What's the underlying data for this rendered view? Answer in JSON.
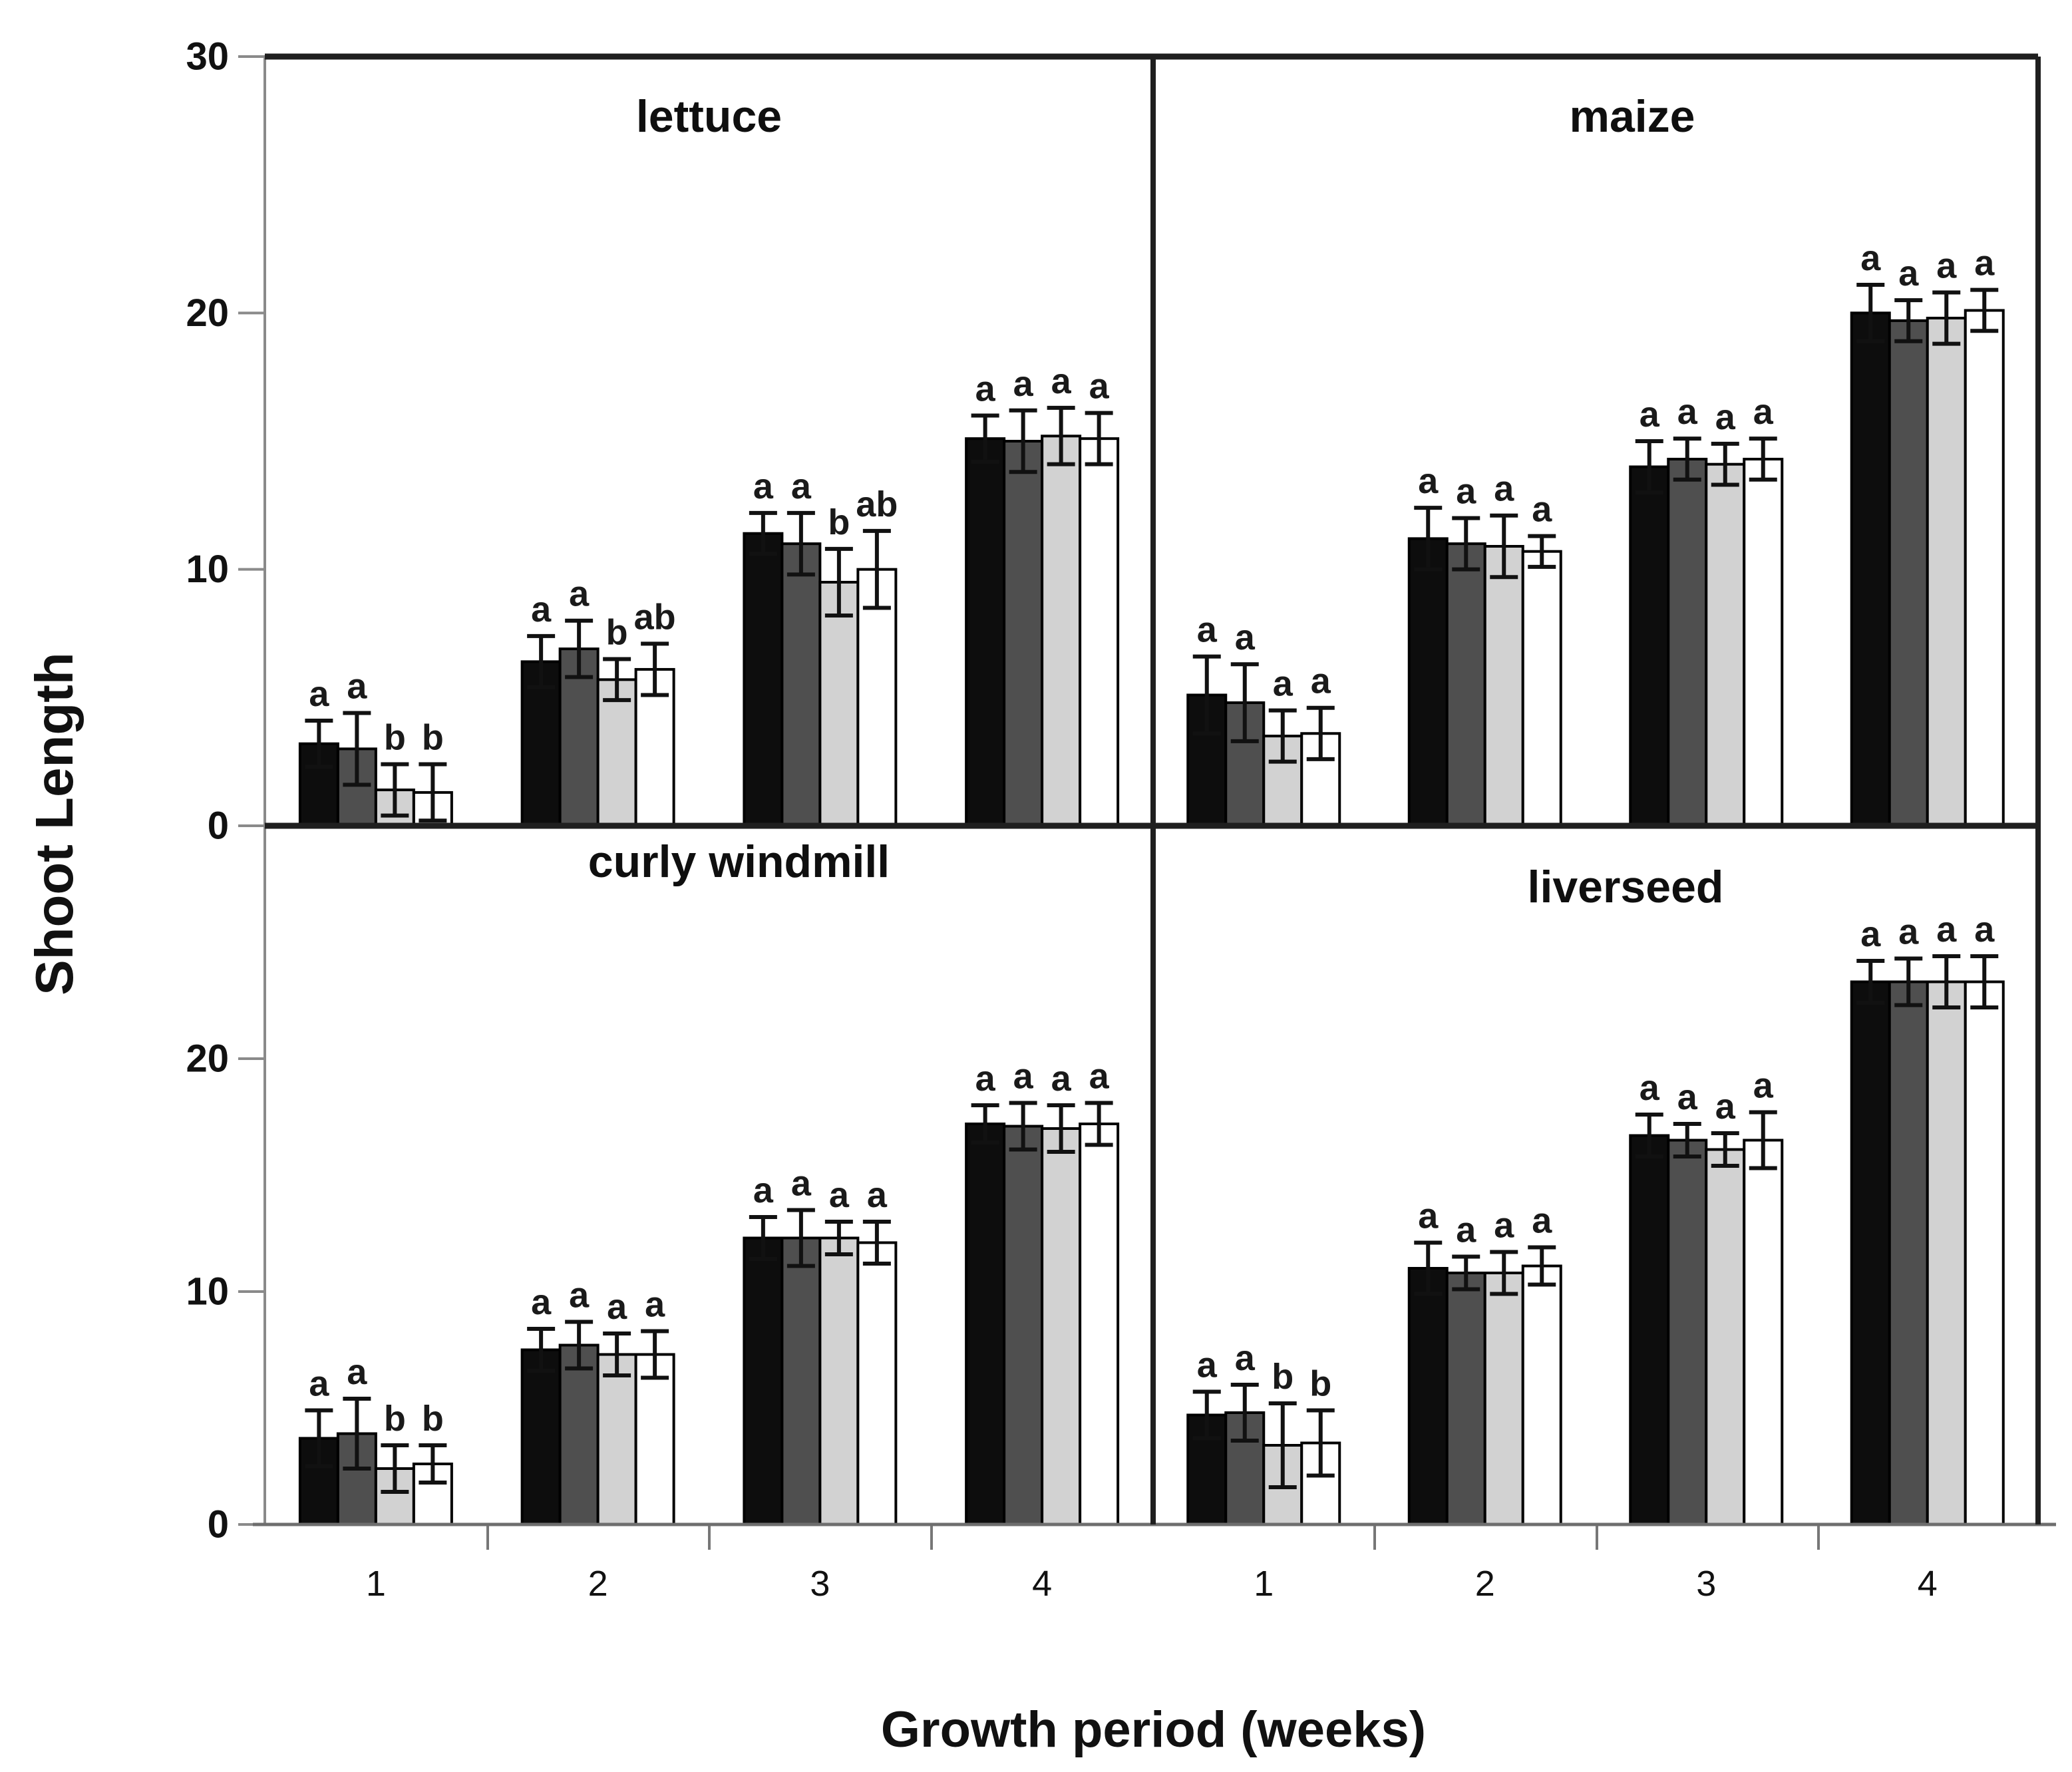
{
  "figure": {
    "background": "#ffffff"
  },
  "chart_data": {
    "type": "bar",
    "title": "",
    "xlabel": "Growth period (weeks)",
    "ylabel": "Shoot Length",
    "categories": [
      "1",
      "2",
      "3",
      "4"
    ],
    "ylim": [
      0,
      30
    ],
    "grid": false,
    "legend": "none",
    "ytick_values_top_panels": [
      30,
      20,
      10,
      0
    ],
    "ytick_values_bottom_panels": [
      20,
      10,
      0
    ],
    "series": [
      {
        "name": "black",
        "fill": "#0d0d0d"
      },
      {
        "name": "dark-gray",
        "fill": "#4f4f4f"
      },
      {
        "name": "light-gray",
        "fill": "#d2d2d2"
      },
      {
        "name": "white",
        "fill": "#ffffff"
      }
    ],
    "colors": {
      "bar_outline": "#000000",
      "error_bar": "#111111",
      "frame": "#1f1f1f",
      "axis": "#8a8a8a",
      "text": "#1a1a1a"
    },
    "panels": [
      {
        "title": "lettuce",
        "row": 0,
        "col": 0,
        "groups": [
          {
            "category": "1",
            "values": [
              3.2,
              3.0,
              1.4,
              1.3
            ],
            "errors": [
              0.9,
              1.4,
              1.0,
              1.1
            ],
            "letters": [
              "a",
              "a",
              "b",
              "b"
            ]
          },
          {
            "category": "2",
            "values": [
              6.4,
              6.9,
              5.7,
              6.1
            ],
            "errors": [
              1.0,
              1.1,
              0.8,
              1.0
            ],
            "letters": [
              "a",
              "a",
              "b",
              "ab"
            ]
          },
          {
            "category": "3",
            "values": [
              11.4,
              11.0,
              9.5,
              10.0
            ],
            "errors": [
              0.8,
              1.2,
              1.3,
              1.5
            ],
            "letters": [
              "a",
              "a",
              "b",
              "ab"
            ]
          },
          {
            "category": "4",
            "values": [
              15.1,
              15.0,
              15.2,
              15.1
            ],
            "errors": [
              0.9,
              1.2,
              1.1,
              1.0
            ],
            "letters": [
              "a",
              "a",
              "a",
              "a"
            ]
          }
        ]
      },
      {
        "title": "maize",
        "row": 0,
        "col": 1,
        "groups": [
          {
            "category": "1",
            "values": [
              5.1,
              4.8,
              3.5,
              3.6
            ],
            "errors": [
              1.5,
              1.5,
              1.0,
              1.0
            ],
            "letters": [
              "a",
              "a",
              "a",
              "a"
            ]
          },
          {
            "category": "2",
            "values": [
              11.2,
              11.0,
              10.9,
              10.7
            ],
            "errors": [
              1.2,
              1.0,
              1.2,
              0.6
            ],
            "letters": [
              "a",
              "a",
              "a",
              "a"
            ]
          },
          {
            "category": "3",
            "values": [
              14.0,
              14.3,
              14.1,
              14.3
            ],
            "errors": [
              1.0,
              0.8,
              0.8,
              0.8
            ],
            "letters": [
              "a",
              "a",
              "a",
              "a"
            ]
          },
          {
            "category": "4",
            "values": [
              20.0,
              19.7,
              19.8,
              20.1
            ],
            "errors": [
              1.1,
              0.8,
              1.0,
              0.8
            ],
            "letters": [
              "a",
              "a",
              "a",
              "a"
            ]
          }
        ]
      },
      {
        "title": "curly windmill",
        "row": 1,
        "col": 0,
        "groups": [
          {
            "category": "1",
            "values": [
              3.7,
              3.9,
              2.4,
              2.6
            ],
            "errors": [
              1.2,
              1.5,
              1.0,
              0.8
            ],
            "letters": [
              "a",
              "a",
              "b",
              "b"
            ]
          },
          {
            "category": "2",
            "values": [
              7.5,
              7.7,
              7.3,
              7.3
            ],
            "errors": [
              0.9,
              1.0,
              0.9,
              1.0
            ],
            "letters": [
              "a",
              "a",
              "a",
              "a"
            ]
          },
          {
            "category": "3",
            "values": [
              12.3,
              12.3,
              12.3,
              12.1
            ],
            "errors": [
              0.9,
              1.2,
              0.7,
              0.9
            ],
            "letters": [
              "a",
              "a",
              "a",
              "a"
            ]
          },
          {
            "category": "4",
            "values": [
              17.2,
              17.1,
              17.0,
              17.2
            ],
            "errors": [
              0.8,
              1.0,
              1.0,
              0.9
            ],
            "letters": [
              "a",
              "a",
              "a",
              "a"
            ]
          }
        ]
      },
      {
        "title": "liverseed",
        "row": 1,
        "col": 1,
        "groups": [
          {
            "category": "1",
            "values": [
              4.7,
              4.8,
              3.4,
              3.5
            ],
            "errors": [
              1.0,
              1.2,
              1.8,
              1.4
            ],
            "letters": [
              "a",
              "a",
              "b",
              "b"
            ]
          },
          {
            "category": "2",
            "values": [
              11.0,
              10.8,
              10.8,
              11.1
            ],
            "errors": [
              1.1,
              0.7,
              0.9,
              0.8
            ],
            "letters": [
              "a",
              "a",
              "a",
              "a"
            ]
          },
          {
            "category": "3",
            "values": [
              16.7,
              16.5,
              16.1,
              16.5
            ],
            "errors": [
              0.9,
              0.7,
              0.7,
              1.2
            ],
            "letters": [
              "a",
              "a",
              "a",
              "a"
            ]
          },
          {
            "category": "4",
            "values": [
              23.3,
              23.3,
              23.3,
              23.3
            ],
            "errors": [
              0.9,
              1.0,
              1.1,
              1.1
            ],
            "letters": [
              "a",
              "a",
              "a",
              "a"
            ]
          }
        ]
      }
    ]
  }
}
